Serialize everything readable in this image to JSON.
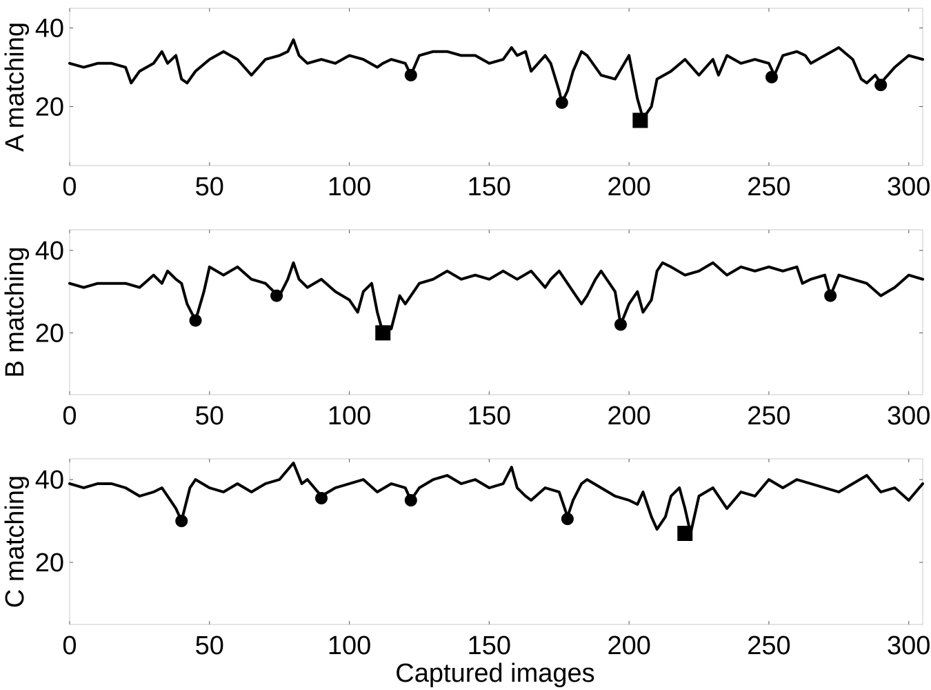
{
  "chart_data": [
    {
      "type": "line",
      "ylabel": "A matching",
      "xlim": [
        0,
        305
      ],
      "ylim": [
        5,
        45
      ],
      "x_ticks": [
        0,
        50,
        100,
        150,
        200,
        250,
        300
      ],
      "y_ticks": [
        20,
        40
      ],
      "x": [
        0,
        5,
        10,
        15,
        20,
        22,
        25,
        30,
        33,
        35,
        38,
        40,
        42,
        45,
        50,
        55,
        60,
        65,
        70,
        75,
        78,
        80,
        82,
        85,
        90,
        95,
        100,
        105,
        110,
        112,
        115,
        120,
        122,
        125,
        130,
        135,
        140,
        145,
        150,
        155,
        158,
        160,
        163,
        165,
        170,
        172,
        175,
        176,
        178,
        180,
        183,
        185,
        190,
        195,
        200,
        203,
        205,
        208,
        210,
        215,
        220,
        225,
        230,
        232,
        235,
        240,
        245,
        250,
        252,
        255,
        260,
        263,
        265,
        270,
        275,
        280,
        283,
        285,
        288,
        290,
        295,
        300,
        305
      ],
      "values": [
        31,
        30,
        31,
        31,
        30,
        26,
        29,
        31,
        34,
        31,
        33,
        27,
        26,
        29,
        32,
        34,
        32,
        28,
        32,
        33,
        34,
        37,
        33,
        31,
        32,
        31,
        33,
        32,
        30,
        31,
        32,
        31,
        28,
        33,
        34,
        34,
        33,
        33,
        31,
        32,
        35,
        33,
        34,
        29,
        33,
        31,
        24,
        21,
        24,
        29,
        34,
        33,
        28,
        27,
        33,
        22,
        17,
        20,
        27,
        29,
        32,
        28,
        32,
        28,
        33,
        31,
        32,
        31,
        28,
        33,
        34,
        33,
        31,
        33,
        35,
        32,
        27,
        26,
        28,
        26,
        30,
        33,
        32
      ],
      "circle_markers": [
        {
          "x": 122,
          "y": 28
        },
        {
          "x": 176,
          "y": 21
        },
        {
          "x": 251,
          "y": 27.5
        },
        {
          "x": 290,
          "y": 25.5
        }
      ],
      "square_markers": [
        {
          "x": 204,
          "y": 16.5
        }
      ]
    },
    {
      "type": "line",
      "ylabel": "B matching",
      "xlim": [
        0,
        305
      ],
      "ylim": [
        5,
        45
      ],
      "x_ticks": [
        0,
        50,
        100,
        150,
        200,
        250,
        300
      ],
      "y_ticks": [
        20,
        40
      ],
      "x": [
        0,
        5,
        10,
        15,
        20,
        25,
        30,
        33,
        35,
        38,
        40,
        42,
        45,
        48,
        50,
        55,
        60,
        65,
        70,
        73,
        75,
        78,
        80,
        82,
        85,
        90,
        95,
        100,
        103,
        105,
        108,
        110,
        112,
        115,
        118,
        120,
        125,
        130,
        135,
        140,
        145,
        150,
        155,
        160,
        165,
        170,
        172,
        175,
        180,
        183,
        185,
        188,
        190,
        195,
        197,
        200,
        203,
        205,
        208,
        210,
        212,
        215,
        220,
        225,
        230,
        235,
        240,
        245,
        250,
        255,
        260,
        262,
        265,
        270,
        272,
        275,
        280,
        285,
        290,
        295,
        300,
        305
      ],
      "values": [
        32,
        31,
        32,
        32,
        32,
        31,
        34,
        32,
        35,
        33,
        32,
        27,
        23,
        30,
        36,
        34,
        36,
        33,
        32,
        30,
        29,
        33,
        37,
        33,
        31,
        33,
        30,
        28,
        25,
        30,
        32,
        25,
        20,
        21,
        29,
        27,
        32,
        33,
        35,
        33,
        34,
        33,
        35,
        33,
        35,
        31,
        33,
        35,
        30,
        27,
        29,
        33,
        35,
        30,
        22,
        27,
        30,
        25,
        28,
        35,
        37,
        36,
        34,
        35,
        37,
        34,
        36,
        35,
        36,
        35,
        36,
        32,
        33,
        34,
        29,
        34,
        33,
        32,
        29,
        31,
        34,
        33
      ],
      "circle_markers": [
        {
          "x": 45,
          "y": 23
        },
        {
          "x": 74,
          "y": 29
        },
        {
          "x": 197,
          "y": 22
        },
        {
          "x": 272,
          "y": 29
        }
      ],
      "square_markers": [
        {
          "x": 112,
          "y": 20
        }
      ]
    },
    {
      "type": "line",
      "ylabel": "C matching",
      "xlabel": "Captured images",
      "xlim": [
        0,
        305
      ],
      "ylim": [
        5,
        45
      ],
      "x_ticks": [
        0,
        50,
        100,
        150,
        200,
        250,
        300
      ],
      "y_ticks": [
        20,
        40
      ],
      "x": [
        0,
        5,
        10,
        15,
        20,
        25,
        30,
        33,
        35,
        38,
        40,
        43,
        45,
        50,
        55,
        60,
        65,
        70,
        75,
        80,
        83,
        85,
        90,
        95,
        100,
        105,
        110,
        115,
        120,
        122,
        125,
        130,
        135,
        140,
        145,
        150,
        155,
        158,
        160,
        163,
        165,
        170,
        175,
        178,
        180,
        183,
        185,
        190,
        195,
        200,
        203,
        205,
        208,
        210,
        213,
        215,
        218,
        220,
        222,
        225,
        230,
        235,
        240,
        245,
        250,
        255,
        260,
        265,
        270,
        275,
        280,
        285,
        290,
        295,
        300,
        305
      ],
      "values": [
        39,
        38,
        39,
        39,
        38,
        36,
        37,
        38,
        36,
        33,
        30,
        38,
        40,
        38,
        37,
        39,
        37,
        39,
        40,
        44,
        39,
        40,
        36,
        38,
        39,
        40,
        37,
        39,
        38,
        35,
        38,
        40,
        41,
        39,
        40,
        38,
        39,
        43,
        38,
        36,
        35,
        38,
        37,
        31,
        35,
        39,
        40,
        38,
        36,
        35,
        34,
        37,
        31,
        28,
        31,
        36,
        38,
        33,
        27,
        36,
        38,
        33,
        37,
        36,
        40,
        38,
        40,
        39,
        38,
        37,
        39,
        41,
        37,
        38,
        35,
        39
      ],
      "circle_markers": [
        {
          "x": 40,
          "y": 30
        },
        {
          "x": 90,
          "y": 35.5
        },
        {
          "x": 122,
          "y": 35
        },
        {
          "x": 178,
          "y": 30.5
        }
      ],
      "square_markers": [
        {
          "x": 220,
          "y": 27
        }
      ]
    }
  ]
}
